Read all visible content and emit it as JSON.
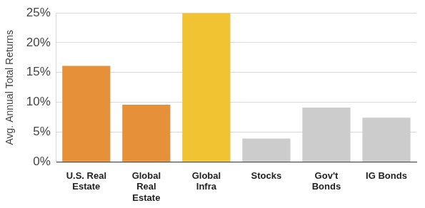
{
  "chart_data": {
    "type": "bar",
    "y_label": "Avg. Annual Total Returns",
    "categories": [
      "U.S. Real Estate",
      "Global Real Estate",
      "Global Infra",
      "Stocks",
      "Gov't Bonds",
      "IG Bonds"
    ],
    "values": [
      16.1,
      9.6,
      25,
      3.9,
      9.1,
      7.4
    ],
    "colors": [
      "#e69138",
      "#e69138",
      "#f1c232",
      "#cccccc",
      "#cccccc",
      "#cccccc"
    ],
    "ylim": [
      0,
      25
    ],
    "yticks": [
      {
        "value": 0,
        "label": "0%"
      },
      {
        "value": 5,
        "label": "5%"
      },
      {
        "value": 10,
        "label": "10%"
      },
      {
        "value": 15,
        "label": "15%"
      },
      {
        "value": 20,
        "label": "20%"
      },
      {
        "value": 25,
        "label": "25%"
      }
    ],
    "grid": true
  }
}
